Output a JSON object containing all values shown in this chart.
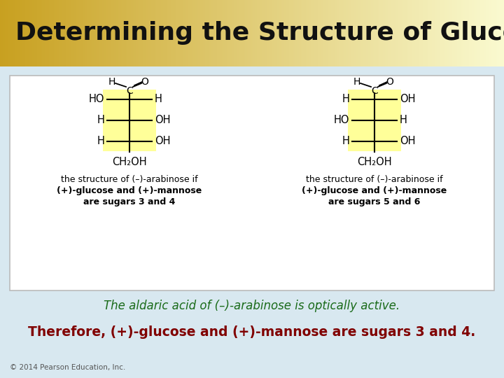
{
  "title": "Determining the Structure of Glucose",
  "title_color": "#111111",
  "header_grad_left": "#C8A020",
  "header_grad_right": "#FAFAD0",
  "bg_color": "#D8E8F0",
  "panel_bg": "#FFFFFF",
  "panel_border": "#BBBBBB",
  "highlight_color": "#FFFF99",
  "text_green": "#1A6B1A",
  "text_red": "#800000",
  "text_black": "#000000",
  "text_gray": "#555555",
  "line1_green": "The aldaric acid of (–)-arabinose is optically active.",
  "line2_red": "Therefore, (+)-glucose and (+)-mannose are sugars 3 and 4.",
  "copyright": "© 2014 Pearson Education, Inc.",
  "left_caption": [
    "the structure of (–)-arabinose if",
    "(+)-glucose and (+)-mannose",
    "are sugars 3 and 4"
  ],
  "right_caption": [
    "the structure of (–)-arabinose if",
    "(+)-glucose and (+)-mannose",
    "are sugars 5 and 6"
  ],
  "left_rows": [
    "HO—H",
    "H—OH",
    "H—OH"
  ],
  "right_rows": [
    "H—OH",
    "HO—H",
    "H—OH"
  ]
}
